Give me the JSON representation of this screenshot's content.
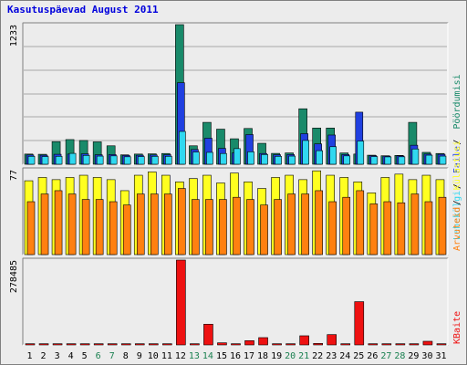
{
  "title": "Kasutuspäevad August 2011",
  "colors": {
    "background": "#ececec",
    "plot_background": "#ececec",
    "hits": "#198a6a",
    "files": "#2040e0",
    "pages": "#30d8f0",
    "visits": "#ffff20",
    "sites": "#ff8010",
    "kbytes": "#ee1111",
    "title": "#0000dd",
    "weekend_label": "#1a8050"
  },
  "chart_data": [
    {
      "type": "bar",
      "panel": "top",
      "ymax_label": "1233",
      "ylim": [
        0,
        1233
      ],
      "categories": [
        "1",
        "2",
        "3",
        "4",
        "5",
        "6",
        "7",
        "8",
        "9",
        "10",
        "11",
        "12",
        "13",
        "14",
        "15",
        "16",
        "17",
        "18",
        "19",
        "20",
        "21",
        "22",
        "23",
        "24",
        "25",
        "26",
        "27",
        "28",
        "29",
        "30",
        "31"
      ],
      "weekend_days": [
        "6",
        "7",
        "13",
        "14",
        "20",
        "21",
        "27",
        "28"
      ],
      "legend": [
        {
          "label": "Pöördumisi",
          "color_key": "hits"
        },
        {
          "label": "Faile",
          "color_key": "files"
        },
        {
          "label": "Lehekülgi",
          "color_key": "pages"
        }
      ],
      "series": [
        {
          "name": "Pöördumisi",
          "values": [
            90,
            88,
            200,
            218,
            210,
            198,
            163,
            83,
            90,
            92,
            95,
            1233,
            163,
            370,
            310,
            225,
            316,
            185,
            96,
            100,
            490,
            320,
            320,
            100,
            90,
            80,
            75,
            78,
            370,
            105,
            95
          ]
        },
        {
          "name": "Faile",
          "values": [
            82,
            80,
            88,
            90,
            92,
            84,
            86,
            78,
            80,
            82,
            84,
            720,
            130,
            230,
            140,
            100,
            262,
            95,
            84,
            86,
            270,
            180,
            258,
            86,
            460,
            76,
            72,
            74,
            168,
            90,
            88
          ]
        },
        {
          "name": "Lehekülgi",
          "values": [
            70,
            68,
            70,
            96,
            78,
            72,
            74,
            66,
            68,
            70,
            70,
            290,
            108,
            105,
            95,
            138,
            110,
            86,
            70,
            72,
            210,
            120,
            155,
            74,
            205,
            68,
            65,
            66,
            135,
            80,
            72
          ]
        }
      ]
    },
    {
      "type": "bar",
      "panel": "middle",
      "ymax_label": "77",
      "ylim": [
        0,
        77
      ],
      "categories": [
        "1",
        "2",
        "3",
        "4",
        "5",
        "6",
        "7",
        "8",
        "9",
        "10",
        "11",
        "12",
        "13",
        "14",
        "15",
        "16",
        "17",
        "18",
        "19",
        "20",
        "21",
        "22",
        "23",
        "24",
        "25",
        "26",
        "27",
        "28",
        "29",
        "30",
        "31"
      ],
      "legend": [
        {
          "label": "Külastusi",
          "color_key": "visits"
        },
        {
          "label": "Arvuteid",
          "color_key": "sites"
        }
      ],
      "series": [
        {
          "name": "Külastusi",
          "values": [
            67,
            70,
            68,
            70,
            72,
            70,
            68,
            58,
            72,
            75,
            72,
            66,
            69,
            72,
            65,
            74,
            66,
            60,
            70,
            72,
            68,
            76,
            72,
            70,
            66,
            56,
            70,
            73,
            68,
            72,
            68
          ]
        },
        {
          "name": "Arvuteid",
          "values": [
            48,
            55,
            58,
            55,
            50,
            50,
            48,
            45,
            55,
            55,
            55,
            60,
            50,
            50,
            50,
            52,
            50,
            45,
            50,
            55,
            55,
            58,
            48,
            52,
            58,
            46,
            48,
            47,
            55,
            48,
            52
          ]
        }
      ]
    },
    {
      "type": "bar",
      "panel": "bottom",
      "ymax_label": "278485",
      "ylim": [
        0,
        278485
      ],
      "categories": [
        "1",
        "2",
        "3",
        "4",
        "5",
        "6",
        "7",
        "8",
        "9",
        "10",
        "11",
        "12",
        "13",
        "14",
        "15",
        "16",
        "17",
        "18",
        "19",
        "20",
        "21",
        "22",
        "23",
        "24",
        "25",
        "26",
        "27",
        "28",
        "29",
        "30",
        "31"
      ],
      "legend": [
        {
          "label": "KBaite",
          "color_key": "kbytes"
        }
      ],
      "series": [
        {
          "name": "KBaite",
          "values": [
            4000,
            4000,
            4000,
            4000,
            4000,
            4000,
            4000,
            4000,
            4000,
            4000,
            4000,
            278485,
            4000,
            68000,
            7000,
            4000,
            14000,
            24000,
            4000,
            4000,
            30000,
            5000,
            34000,
            4000,
            142000,
            4000,
            4000,
            4000,
            4000,
            12000,
            4000
          ]
        }
      ]
    }
  ]
}
